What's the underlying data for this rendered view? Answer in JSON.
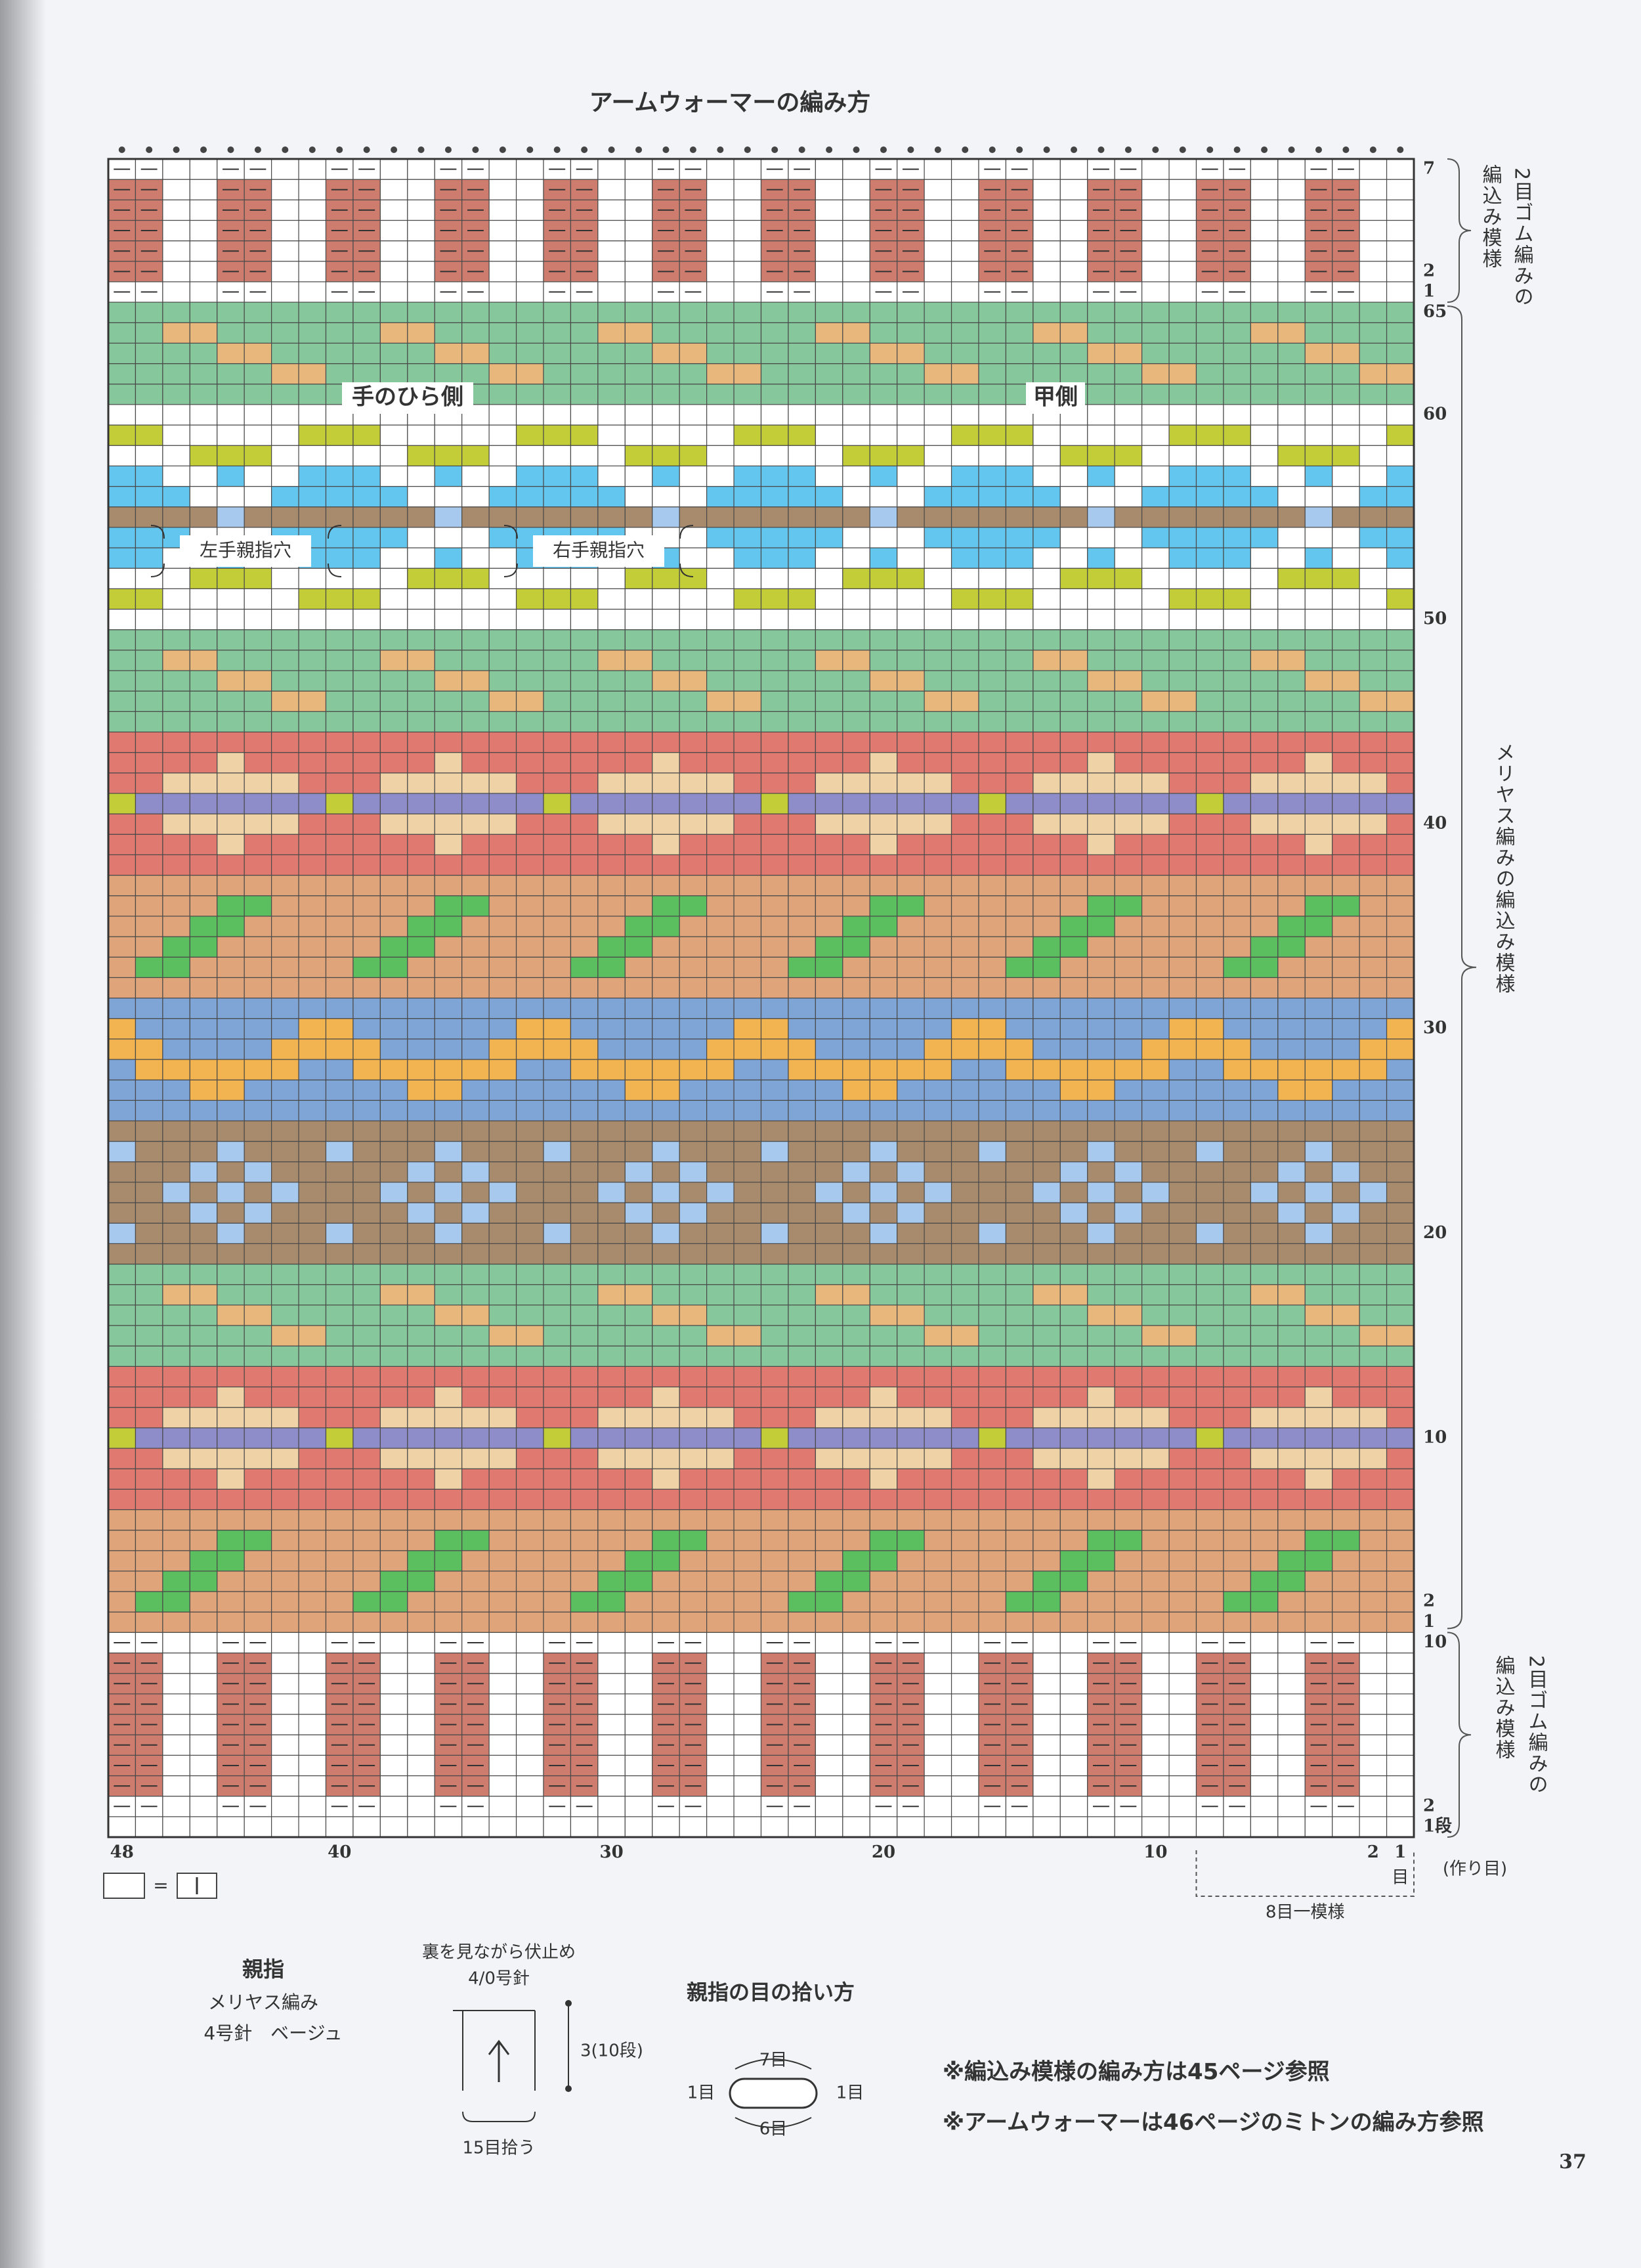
{
  "title": "アームウォーマーの編み方",
  "top_rib": {
    "row_labels": [
      7,
      2,
      1
    ],
    "label_lines": [
      "2目ゴム編みの",
      "編込み模様"
    ]
  },
  "colorwork": {
    "row_labels": [
      65,
      60,
      50,
      40,
      30,
      20,
      10,
      2,
      1
    ],
    "label": "メリヤス編みの編込み模様",
    "side_labels": [
      "手のひら側",
      "甲側"
    ],
    "hole_labels": [
      "左手親指穴",
      "右手親指穴"
    ]
  },
  "bottom_rib": {
    "row_labels": [
      10,
      2,
      {
        "value": 1,
        "label": "1段"
      }
    ],
    "label_lines": [
      "2目ゴム編みの",
      "編込み模様"
    ]
  },
  "cast_on": "(作り目)",
  "column_labels": [
    48,
    40,
    30,
    20,
    10,
    2,
    1
  ],
  "column_unit": "目",
  "repeat": "8目一模様",
  "legend": {
    "equals": "="
  },
  "thumb": {
    "title": "親指",
    "lines": [
      "メリヤス編み",
      "4号針　ベージュ"
    ]
  },
  "thumb_diagram": {
    "top_note": "裏を見ながら伏止め",
    "needle": "4/0号針",
    "height": "3(10段)",
    "bottom": "15目拾う"
  },
  "pickup": {
    "title": "親指の目の拾い方",
    "top": "7目",
    "bottom": "6目",
    "left": "1目",
    "right": "1目"
  },
  "notes": [
    "※編込み模様の編み方は45ページ参照",
    "※アームウォーマーは46ページのミトンの編み方参照"
  ],
  "page_number": "37"
}
